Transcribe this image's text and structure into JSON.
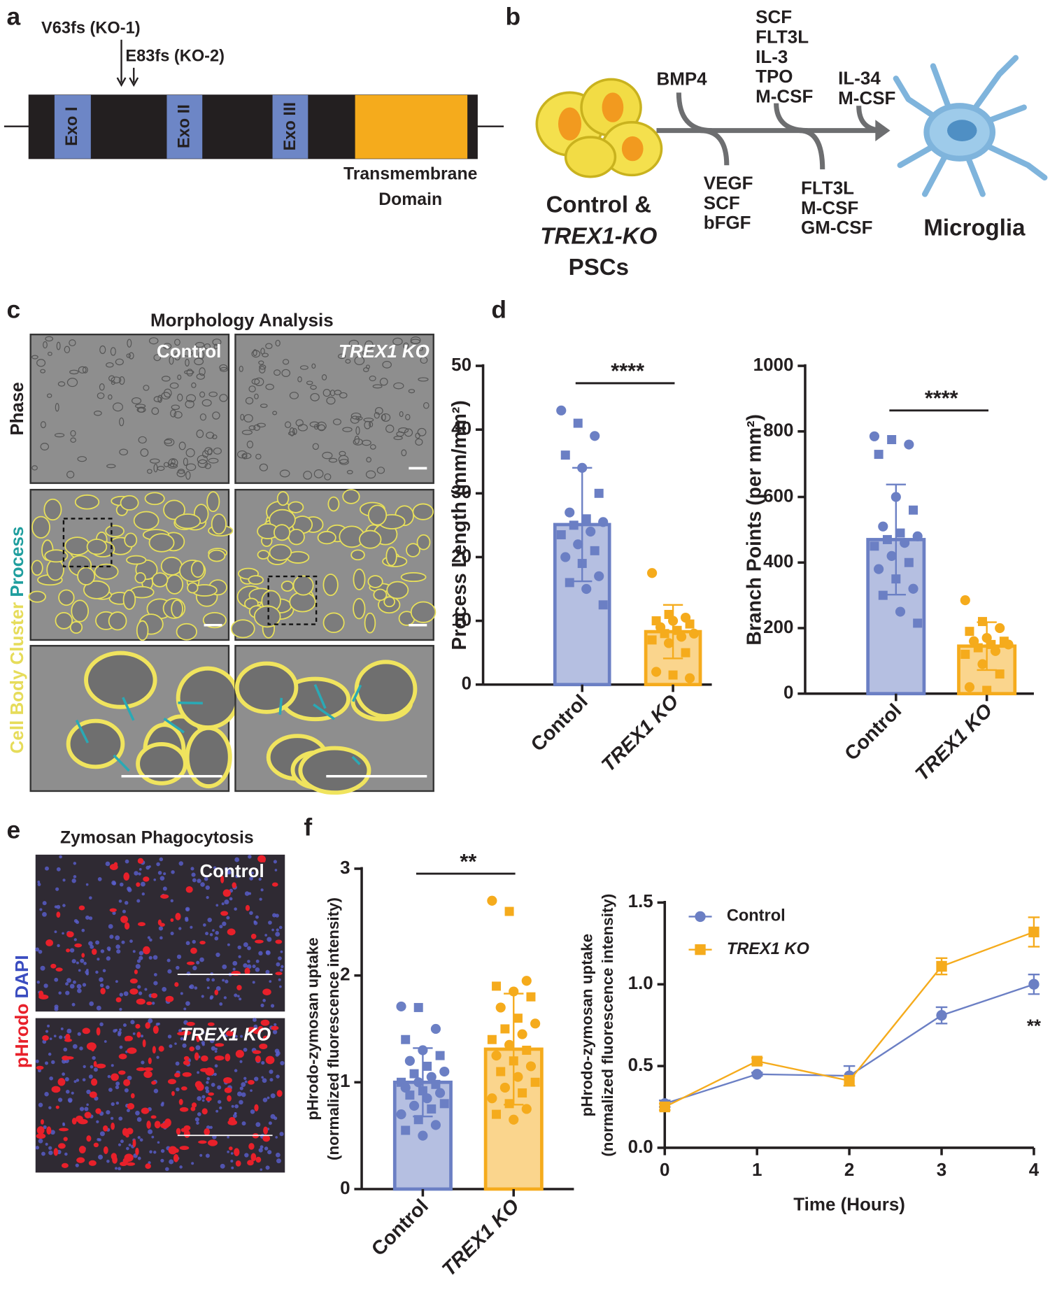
{
  "panels": {
    "a": {
      "label": "a",
      "mutations": [
        "V63fs (KO-1)",
        "E83fs (KO-2)"
      ],
      "exons": [
        "Exo I",
        "Exo II",
        "Exo III"
      ],
      "domain": [
        "Transmembrane",
        "Domain"
      ]
    },
    "b": {
      "label": "b",
      "start": [
        "Control &",
        "TREX1-KO",
        "PSCs"
      ],
      "end": "Microglia",
      "factors": [
        [
          "BMP4"
        ],
        [
          "VEGF",
          "SCF",
          "bFGF"
        ],
        [
          "SCF",
          "FLT3L",
          "IL-3",
          "TPO",
          "M-CSF"
        ],
        [
          "FLT3L",
          "M-CSF",
          "GM-CSF"
        ],
        [
          "IL-34",
          "M-CSF"
        ]
      ]
    },
    "c": {
      "label": "c",
      "title": "Morphology Analysis",
      "columns": [
        "Control",
        "TREX1 KO"
      ],
      "rows": [
        "Phase",
        "Cell Body Cluster",
        "Process"
      ]
    },
    "d": {
      "label": "d"
    },
    "e": {
      "label": "e",
      "title": "Zymosan Phagocytosis",
      "conditions": [
        "Control",
        "TREX1 KO"
      ],
      "stains": [
        "pHrodo",
        "DAPI"
      ]
    },
    "f": {
      "label": "f"
    }
  },
  "chart_data": [
    {
      "type": "bar",
      "ylabel": [
        "Process  Length (mm/mm²)"
      ],
      "categories": [
        "Control",
        "TREX1 KO"
      ],
      "values": [
        25.1,
        8.3
      ],
      "errors": [
        8.9,
        4.2
      ],
      "colors": [
        "#6b7fc4",
        "#f5ab1c"
      ],
      "points": [
        [
          43,
          41,
          39,
          36,
          34,
          30,
          27,
          26,
          25.5,
          25,
          24,
          23.5,
          22,
          21,
          20,
          19,
          17,
          16,
          15,
          12.5
        ],
        [
          17.5,
          11,
          10.5,
          10,
          10,
          9.5,
          9,
          8.5,
          8,
          8,
          7.5,
          7,
          6.5,
          5,
          2,
          1.5,
          1
        ]
      ],
      "ylim": [
        0,
        50
      ],
      "yticks": [
        0,
        10,
        20,
        30,
        40,
        50
      ],
      "significance": "****"
    },
    {
      "type": "bar",
      "ylabel": [
        "Branch Points (per mm²)"
      ],
      "categories": [
        "Control",
        "TREX1 KO"
      ],
      "values": [
        470,
        145
      ],
      "errors": [
        168,
        73
      ],
      "colors": [
        "#6b7fc4",
        "#f5ab1c"
      ],
      "points": [
        [
          785,
          775,
          760,
          730,
          600,
          560,
          510,
          490,
          480,
          470,
          460,
          450,
          420,
          400,
          380,
          350,
          320,
          300,
          250,
          215
        ],
        [
          285,
          220,
          200,
          190,
          170,
          160,
          160,
          150,
          150,
          140,
          130,
          120,
          90,
          60,
          20,
          10
        ]
      ],
      "ylim": [
        0,
        1000
      ],
      "yticks": [
        0,
        200,
        400,
        600,
        800,
        1000
      ],
      "significance": "****"
    },
    {
      "type": "bar",
      "ylabel": [
        "pHrodo-zymosan uptake",
        "(normalized fluorescence intensity)"
      ],
      "categories": [
        "Control",
        "TREX1 KO"
      ],
      "values": [
        1.0,
        1.31
      ],
      "errors": [
        0.32,
        0.52
      ],
      "colors": [
        "#6b7fc4",
        "#f5ab1c"
      ],
      "points": [
        [
          1.71,
          1.7,
          1.5,
          1.4,
          1.3,
          1.25,
          1.2,
          1.15,
          1.1,
          1.08,
          1.05,
          1.0,
          1.0,
          0.98,
          0.95,
          0.92,
          0.9,
          0.88,
          0.85,
          0.8,
          0.78,
          0.75,
          0.7,
          0.65,
          0.6,
          0.55,
          0.5
        ],
        [
          2.7,
          2.6,
          1.95,
          1.9,
          1.85,
          1.8,
          1.7,
          1.6,
          1.55,
          1.5,
          1.45,
          1.4,
          1.35,
          1.3,
          1.25,
          1.2,
          1.15,
          1.1,
          1.05,
          1.0,
          0.95,
          0.9,
          0.85,
          0.8,
          0.75,
          0.7,
          0.65
        ]
      ],
      "ylim": [
        0,
        3
      ],
      "yticks": [
        0,
        1,
        2,
        3
      ],
      "significance": "**"
    },
    {
      "type": "line",
      "xlabel": "Time (Hours)",
      "ylabel": [
        "pHrodo-zymosan uptake",
        "(normalized fluorescence intensity)"
      ],
      "x": [
        0,
        1,
        2,
        3,
        4
      ],
      "xlim": [
        0,
        4
      ],
      "xticks": [
        0,
        1,
        2,
        3,
        4
      ],
      "ylim": [
        0,
        1.5
      ],
      "yticks": [
        {
          "value": 0,
          "label": "0.0"
        },
        {
          "value": 0.5,
          "label": "0.5"
        },
        {
          "value": 1,
          "label": "1.0"
        },
        {
          "value": 1.5,
          "label": "1.5"
        }
      ],
      "series": [
        {
          "name": "Control",
          "color": "#6b7fc4",
          "marker": "circle",
          "values": [
            0.27,
            0.45,
            0.44,
            0.81,
            1.0
          ],
          "errors": [
            0.02,
            0.01,
            0.06,
            0.05,
            0.06
          ]
        },
        {
          "name": "TREX1 KO",
          "color": "#f5ab1c",
          "marker": "square",
          "values": [
            0.25,
            0.53,
            0.41,
            1.11,
            1.32
          ],
          "errors": [
            0.02,
            0.02,
            0.03,
            0.05,
            0.09
          ]
        }
      ],
      "annotation": "**"
    }
  ]
}
